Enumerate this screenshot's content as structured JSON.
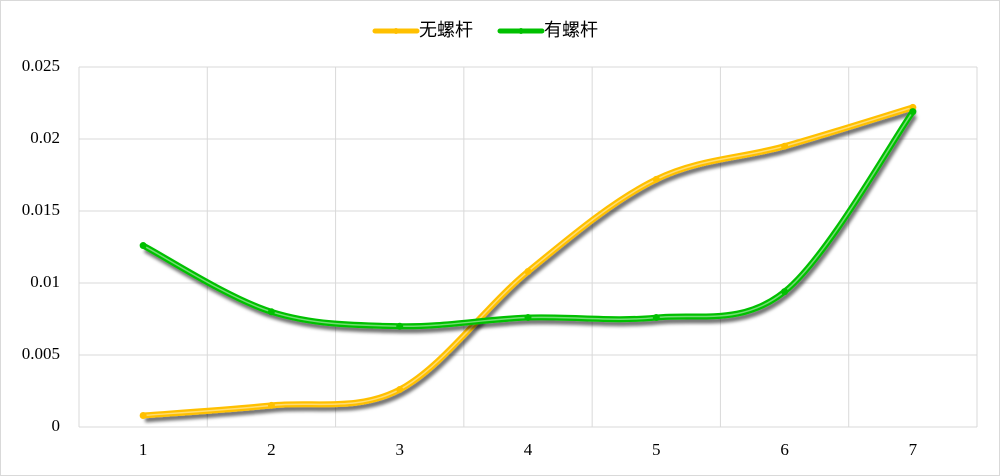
{
  "chart_data": {
    "type": "line",
    "categories": [
      "1",
      "2",
      "3",
      "4",
      "5",
      "6",
      "7"
    ],
    "series": [
      {
        "name": "无螺杆",
        "color": "#ffc000",
        "values": [
          0.0008,
          0.0015,
          0.0026,
          0.0108,
          0.0172,
          0.0195,
          0.0222
        ]
      },
      {
        "name": "有螺杆",
        "color": "#00c000",
        "values": [
          0.0126,
          0.008,
          0.007,
          0.0076,
          0.0076,
          0.0094,
          0.0219
        ]
      }
    ],
    "ylim": [
      0,
      0.025
    ],
    "yticks": [
      0,
      0.005,
      0.01,
      0.015,
      0.02,
      0.025
    ],
    "grid": true,
    "legend": "top",
    "smooth": true
  }
}
